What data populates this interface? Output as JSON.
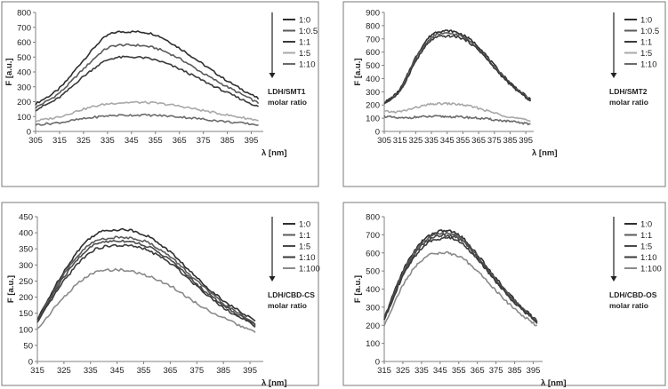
{
  "chart_data": [
    {
      "type": "line",
      "panel": "top-left",
      "xlabel": "λ [nm]",
      "ylabel": "F [a.u.]",
      "xlim": [
        305,
        400
      ],
      "ylim": [
        0,
        800
      ],
      "xticks": [
        305,
        315,
        325,
        335,
        345,
        355,
        365,
        375,
        385,
        395
      ],
      "yticks": [
        0,
        100,
        200,
        300,
        400,
        500,
        600,
        700,
        800
      ],
      "legend_title": "LDH/SMT1 molar ratio",
      "legend_title_lines": [
        "LDH/SMT1",
        "molar ratio"
      ],
      "series": [
        {
          "name": "1:0",
          "color": "#2f2f2f",
          "x": [
            305,
            315,
            325,
            335,
            345,
            355,
            365,
            375,
            385,
            398
          ],
          "y": [
            185,
            290,
            480,
            645,
            670,
            650,
            560,
            450,
            340,
            220
          ]
        },
        {
          "name": "1:0.5",
          "color": "#5a5a5a",
          "x": [
            305,
            315,
            325,
            335,
            345,
            355,
            365,
            375,
            385,
            398
          ],
          "y": [
            160,
            260,
            420,
            560,
            580,
            560,
            490,
            390,
            300,
            190
          ]
        },
        {
          "name": "1:1",
          "color": "#3a3a3a",
          "x": [
            305,
            315,
            325,
            335,
            345,
            355,
            365,
            375,
            385,
            398
          ],
          "y": [
            145,
            230,
            370,
            480,
            500,
            480,
            420,
            340,
            260,
            165
          ]
        },
        {
          "name": "1:5",
          "color": "#a8a8a8",
          "x": [
            305,
            315,
            325,
            335,
            345,
            355,
            365,
            375,
            385,
            398
          ],
          "y": [
            70,
            100,
            150,
            185,
            195,
            190,
            170,
            140,
            110,
            75
          ]
        },
        {
          "name": "1:10",
          "color": "#6a6a6a",
          "x": [
            305,
            315,
            325,
            335,
            345,
            355,
            365,
            375,
            385,
            398
          ],
          "y": [
            45,
            60,
            85,
            105,
            110,
            108,
            98,
            82,
            65,
            45
          ]
        }
      ]
    },
    {
      "type": "line",
      "panel": "top-right",
      "xlabel": "λ [nm]",
      "ylabel": "F [a.u.]",
      "xlim": [
        305,
        400
      ],
      "ylim": [
        0,
        900
      ],
      "xticks": [
        305,
        315,
        325,
        335,
        345,
        355,
        365,
        375,
        385,
        395
      ],
      "yticks": [
        0,
        100,
        200,
        300,
        400,
        500,
        600,
        700,
        800,
        900
      ],
      "legend_title": "LDH/SMT2 molar ratio",
      "legend_title_lines": [
        "LDH/SMT2",
        "molar ratio"
      ],
      "series": [
        {
          "name": "1:0",
          "color": "#2f2f2f",
          "x": [
            305,
            315,
            325,
            335,
            345,
            355,
            365,
            375,
            385,
            398
          ],
          "y": [
            215,
            320,
            560,
            730,
            760,
            730,
            640,
            500,
            370,
            240
          ]
        },
        {
          "name": "1:0.5",
          "color": "#5a5a5a",
          "x": [
            305,
            315,
            325,
            335,
            345,
            355,
            365,
            375,
            385,
            398
          ],
          "y": [
            210,
            310,
            545,
            710,
            740,
            715,
            625,
            490,
            360,
            235
          ]
        },
        {
          "name": "1:1",
          "color": "#3a3a3a",
          "x": [
            305,
            315,
            325,
            335,
            345,
            355,
            365,
            375,
            385,
            398
          ],
          "y": [
            212,
            305,
            530,
            690,
            720,
            700,
            615,
            480,
            355,
            230
          ]
        },
        {
          "name": "1:5",
          "color": "#a8a8a8",
          "x": [
            305,
            315,
            325,
            335,
            345,
            355,
            365,
            375,
            385,
            398
          ],
          "y": [
            150,
            150,
            180,
            205,
            210,
            200,
            175,
            140,
            110,
            80
          ]
        },
        {
          "name": "1:10",
          "color": "#6a6a6a",
          "x": [
            305,
            315,
            325,
            335,
            345,
            355,
            365,
            375,
            385,
            398
          ],
          "y": [
            115,
            100,
            108,
            112,
            112,
            108,
            100,
            88,
            75,
            55
          ]
        }
      ]
    },
    {
      "type": "line",
      "panel": "bottom-left",
      "xlabel": "λ [nm]",
      "ylabel": "F [a.u.]",
      "xlim": [
        315,
        400
      ],
      "ylim": [
        0,
        450
      ],
      "xticks": [
        315,
        325,
        335,
        345,
        355,
        365,
        375,
        385,
        395
      ],
      "yticks": [
        0,
        50,
        100,
        150,
        200,
        250,
        300,
        350,
        400,
        450
      ],
      "legend_title": "LDH/CBD-CS molar ratio",
      "legend_title_lines": [
        "LDH/CBD-CS",
        "molar ratio"
      ],
      "series": [
        {
          "name": "1:0",
          "color": "#2f2f2f",
          "x": [
            315,
            325,
            335,
            345,
            355,
            365,
            375,
            385,
            397
          ],
          "y": [
            130,
            280,
            385,
            410,
            395,
            340,
            260,
            190,
            125
          ]
        },
        {
          "name": "1:1",
          "color": "#5a5a5a",
          "x": [
            315,
            325,
            335,
            345,
            355,
            365,
            375,
            385,
            397
          ],
          "y": [
            128,
            270,
            365,
            385,
            375,
            325,
            250,
            180,
            118
          ]
        },
        {
          "name": "1:5",
          "color": "#4a4a4a",
          "x": [
            315,
            325,
            335,
            345,
            355,
            365,
            375,
            385,
            397
          ],
          "y": [
            125,
            262,
            355,
            375,
            362,
            315,
            240,
            175,
            115
          ]
        },
        {
          "name": "1:10",
          "color": "#3a3a3a",
          "x": [
            315,
            325,
            335,
            345,
            355,
            365,
            375,
            385,
            397
          ],
          "y": [
            120,
            250,
            340,
            360,
            350,
            305,
            235,
            168,
            110
          ]
        },
        {
          "name": "1:100",
          "color": "#8a8a8a",
          "x": [
            315,
            325,
            335,
            345,
            355,
            365,
            375,
            385,
            397
          ],
          "y": [
            100,
            200,
            270,
            285,
            270,
            235,
            180,
            135,
            90
          ]
        }
      ]
    },
    {
      "type": "line",
      "panel": "bottom-right",
      "xlabel": "λ [nm]",
      "ylabel": "F [a.u.]",
      "xlim": [
        315,
        400
      ],
      "ylim": [
        0,
        800
      ],
      "xticks": [
        315,
        325,
        335,
        345,
        355,
        365,
        375,
        385,
        395
      ],
      "yticks": [
        0,
        100,
        200,
        300,
        400,
        500,
        600,
        700,
        800
      ],
      "legend_title": "LDH/CBD-OS molar ratio",
      "legend_title_lines": [
        "LDH/CBD-OS",
        "molar ratio"
      ],
      "series": [
        {
          "name": "1:0",
          "color": "#2f2f2f",
          "x": [
            315,
            325,
            335,
            345,
            355,
            365,
            375,
            385,
            397
          ],
          "y": [
            240,
            500,
            660,
            720,
            700,
            590,
            460,
            340,
            225
          ]
        },
        {
          "name": "1:1",
          "color": "#5a5a5a",
          "x": [
            315,
            325,
            335,
            345,
            355,
            365,
            375,
            385,
            397
          ],
          "y": [
            235,
            490,
            650,
            705,
            690,
            580,
            450,
            335,
            220
          ]
        },
        {
          "name": "1:5",
          "color": "#4a4a4a",
          "x": [
            315,
            325,
            335,
            345,
            355,
            365,
            375,
            385,
            397
          ],
          "y": [
            232,
            480,
            640,
            695,
            680,
            575,
            445,
            330,
            218
          ]
        },
        {
          "name": "1:10",
          "color": "#3a3a3a",
          "x": [
            315,
            325,
            335,
            345,
            355,
            365,
            375,
            385,
            397
          ],
          "y": [
            230,
            470,
            625,
            680,
            665,
            565,
            440,
            325,
            215
          ]
        },
        {
          "name": "1:100",
          "color": "#8a8a8a",
          "x": [
            315,
            325,
            335,
            345,
            355,
            365,
            375,
            385,
            397
          ],
          "y": [
            200,
            420,
            560,
            600,
            580,
            500,
            390,
            290,
            195
          ]
        }
      ]
    }
  ]
}
